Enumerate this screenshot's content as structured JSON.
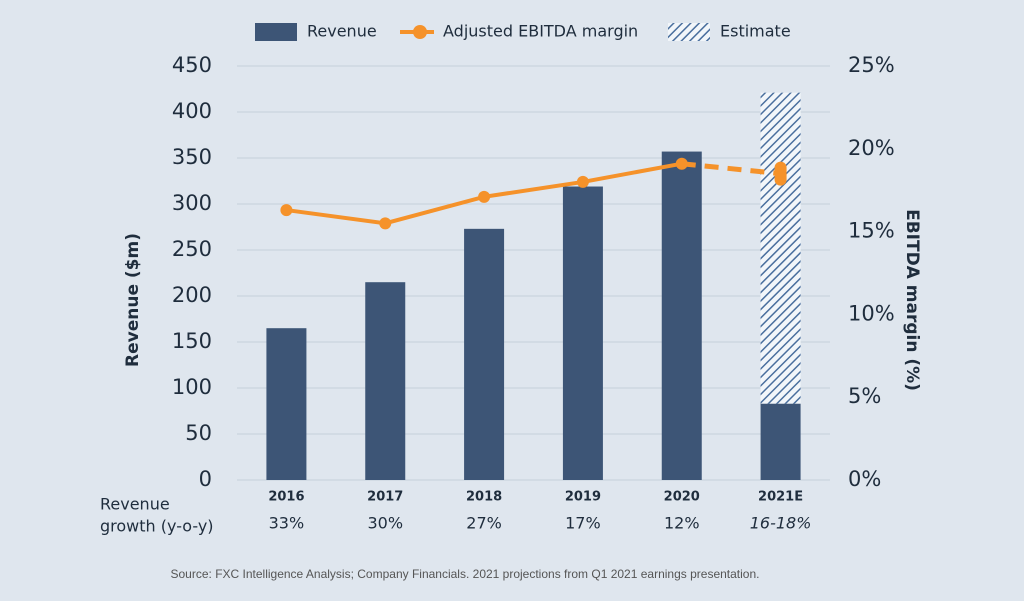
{
  "chart_data": {
    "type": "bar",
    "categories": [
      "2016",
      "2017",
      "2018",
      "2019",
      "2020",
      "2021E"
    ],
    "series": [
      {
        "name": "Revenue",
        "color": "#3d5576",
        "values": [
          165,
          215,
          273,
          319,
          357,
          83
        ]
      },
      {
        "name": "Estimate",
        "color": "#4a6f9e",
        "pattern": "hatch",
        "stacked": true,
        "values": [
          null,
          null,
          null,
          null,
          null,
          338
        ]
      },
      {
        "name": "Adjusted EBITDA margin",
        "color": "#f5922a",
        "type": "line",
        "axis": "y2",
        "values": [
          16.3,
          15.5,
          17.1,
          18.0,
          19.1,
          18.5
        ],
        "dashed": [
          false,
          false,
          false,
          false,
          false,
          true
        ]
      }
    ],
    "ylabel": "Revenue ($m)",
    "y2label": "EBITDA margin (%)",
    "ylim": [
      0,
      450
    ],
    "yticks": [
      0,
      50,
      100,
      150,
      200,
      250,
      300,
      350,
      400,
      450
    ],
    "y2lim": [
      0,
      25
    ],
    "y2ticks": [
      {
        "value": 0,
        "label": "0%"
      },
      {
        "value": 5,
        "label": "5%"
      },
      {
        "value": 10,
        "label": "10%"
      },
      {
        "value": 15,
        "label": "15%"
      },
      {
        "value": 20,
        "label": "20%"
      },
      {
        "value": 25,
        "label": "25%"
      }
    ],
    "grid": true,
    "legend": "top",
    "growth_title": [
      "Revenue",
      "growth (y-o-y)"
    ],
    "growth_labels": [
      "33%",
      "30%",
      "27%",
      "17%",
      "12%",
      "16-18%"
    ],
    "source": "Source: FXC Intelligence Analysis; Company Financials. 2021 projections from Q1 2021 earnings presentation."
  }
}
